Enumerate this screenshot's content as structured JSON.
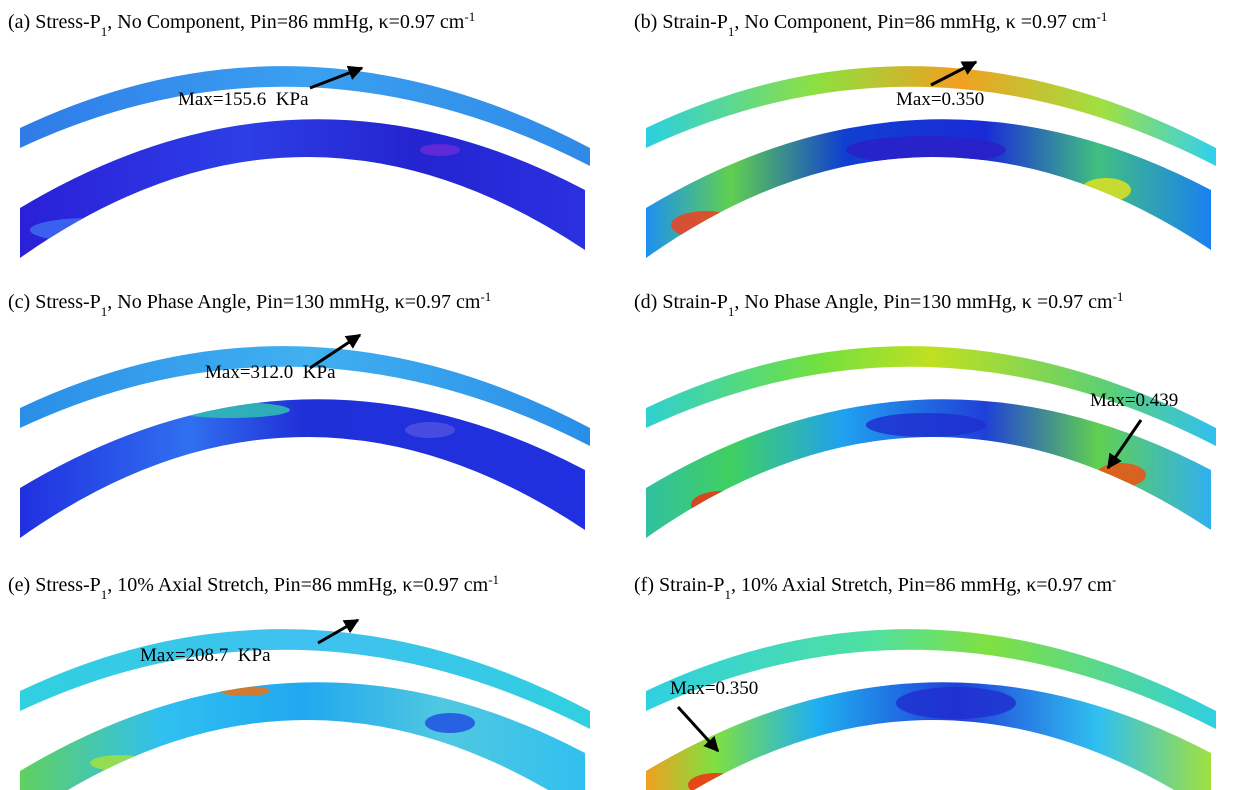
{
  "panels": [
    {
      "title": [
        "(a) Stress-P",
        "1",
        ", No Component, Pin=86 mmHg, κ=0.97 cm",
        "-1"
      ],
      "max_label": "Max=155.6  KPa"
    },
    {
      "title": [
        "(b) Strain-P",
        "1",
        ", No Component, Pin=86 mmHg, κ =0.97 cm",
        "-1"
      ],
      "max_label": "Max=0.350"
    },
    {
      "title": [
        "(c) Stress-P",
        "1",
        ", No Phase Angle, Pin=130 mmHg, κ=0.97 cm",
        "-1"
      ],
      "max_label": "Max=312.0  KPa"
    },
    {
      "title": [
        "(d) Strain-P",
        "1",
        ", No Phase Angle, Pin=130 mmHg, κ =0.97 cm",
        "-1"
      ],
      "max_label": "Max=0.439"
    },
    {
      "title": [
        "(e) Stress-P",
        "1",
        ", 10% Axial Stretch, Pin=86 mmHg, κ=0.97 cm",
        "-1"
      ],
      "max_label": "Max=208.7  KPa"
    },
    {
      "title": [
        "(f) Strain-P",
        "1",
        ", 10% Axial Stretch, Pin=86 mmHg, κ=0.97 cm",
        "-"
      ],
      "max_label": "Max=0.350"
    }
  ]
}
